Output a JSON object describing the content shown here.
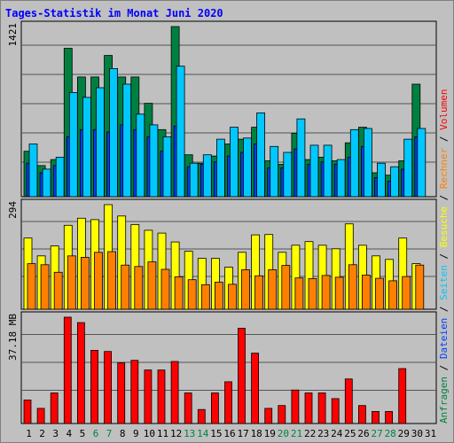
{
  "chart_data": {
    "type": "bar",
    "title": "Tages-Statistik im Monat Juni 2020",
    "categories": [
      "1",
      "2",
      "3",
      "4",
      "5",
      "6",
      "7",
      "8",
      "9",
      "10",
      "11",
      "12",
      "13",
      "14",
      "15",
      "16",
      "17",
      "18",
      "19",
      "20",
      "21",
      "22",
      "23",
      "24",
      "25",
      "26",
      "27",
      "28",
      "29",
      "30",
      "31"
    ],
    "weekend_days": [
      "6",
      "7",
      "13",
      "14",
      "20",
      "21",
      "27",
      "28"
    ],
    "panels": [
      {
        "name": "requests",
        "ymax_label": "1421",
        "ylim": [
          0,
          1421
        ],
        "series": [
          {
            "name": "Anfragen",
            "color": "#008040",
            "values": [
              380,
              260,
              310,
              1240,
              1000,
              1000,
              1180,
              1000,
              1000,
              780,
              560,
              1421,
              350,
              280,
              340,
              440,
              480,
              580,
              300,
              270,
              530,
              310,
              330,
              300,
              450,
              580,
              200,
              180,
              300,
              940,
              null
            ]
          },
          {
            "name": "Dateien",
            "color": "#0040ff",
            "values": [
              280,
              200,
              260,
              500,
              560,
              560,
              540,
              600,
              560,
              500,
              380,
              590,
              250,
              270,
              290,
              340,
              370,
              440,
              240,
              240,
              400,
              270,
              290,
              270,
              330,
              420,
              160,
              130,
              230,
              500,
              null
            ]
          },
          {
            "name": "Seiten",
            "color": "#00c8ff",
            "values": [
              440,
              230,
              330,
              870,
              830,
              910,
              1070,
              940,
              690,
              600,
              500,
              1090,
              280,
              350,
              480,
              580,
              490,
              700,
              420,
              370,
              650,
              430,
              430,
              310,
              560,
              570,
              280,
              250,
              480,
              570,
              null
            ]
          }
        ]
      },
      {
        "name": "visits",
        "ymax_label": "294",
        "ylim": [
          0,
          294
        ],
        "series": [
          {
            "name": "Besuche",
            "color": "#ffff00",
            "values": [
              200,
              150,
              178,
              236,
              256,
              252,
              294,
              262,
              238,
              222,
              214,
              189,
              163,
              143,
              143,
              118,
              160,
              209,
              210,
              160,
              180,
              190,
              180,
              170,
              240,
              180,
              150,
              140,
              200,
              128,
              null
            ]
          },
          {
            "name": "Rechner",
            "color": "#ff8000",
            "values": [
              128,
              125,
              104,
              150,
              146,
              160,
              162,
              124,
              120,
              133,
              112,
              91,
              83,
              69,
              76,
              70,
              111,
              94,
              111,
              123,
              88,
              86,
              95,
              90,
              125,
              96,
              87,
              80,
              92,
              124,
              null
            ]
          }
        ]
      },
      {
        "name": "volume",
        "ymax_label": "37.18 MB",
        "ylim": [
          0,
          37.18
        ],
        "series": [
          {
            "name": "Volumen",
            "color": "#ff0000",
            "values": [
              8.2,
              5.3,
              10.7,
              37.18,
              35.3,
              25.6,
              25.2,
              21.2,
              22.1,
              18.7,
              18.7,
              21.7,
              10.7,
              4.9,
              10.7,
              14.6,
              33.3,
              24.6,
              5.3,
              6.3,
              11.7,
              10.7,
              10.7,
              8.7,
              15.6,
              6.3,
              4.2,
              4.2,
              19.2,
              null,
              null
            ]
          }
        ]
      }
    ],
    "legend_right": [
      "Anfragen",
      "/",
      "Dateien",
      "/",
      "Seiten",
      "/",
      "Besuche",
      "/",
      "Rechner",
      "/",
      "Volumen"
    ],
    "legend_colors": [
      "#008040",
      "#000000",
      "#0040ff",
      "#000000",
      "#00c8ff",
      "#000000",
      "#ffff00",
      "#000000",
      "#ff8000",
      "#000000",
      "#ff0000"
    ],
    "weekday_label_color": "#008040",
    "weekend_label_color": "#008040",
    "workday_label_color": "#000000"
  }
}
